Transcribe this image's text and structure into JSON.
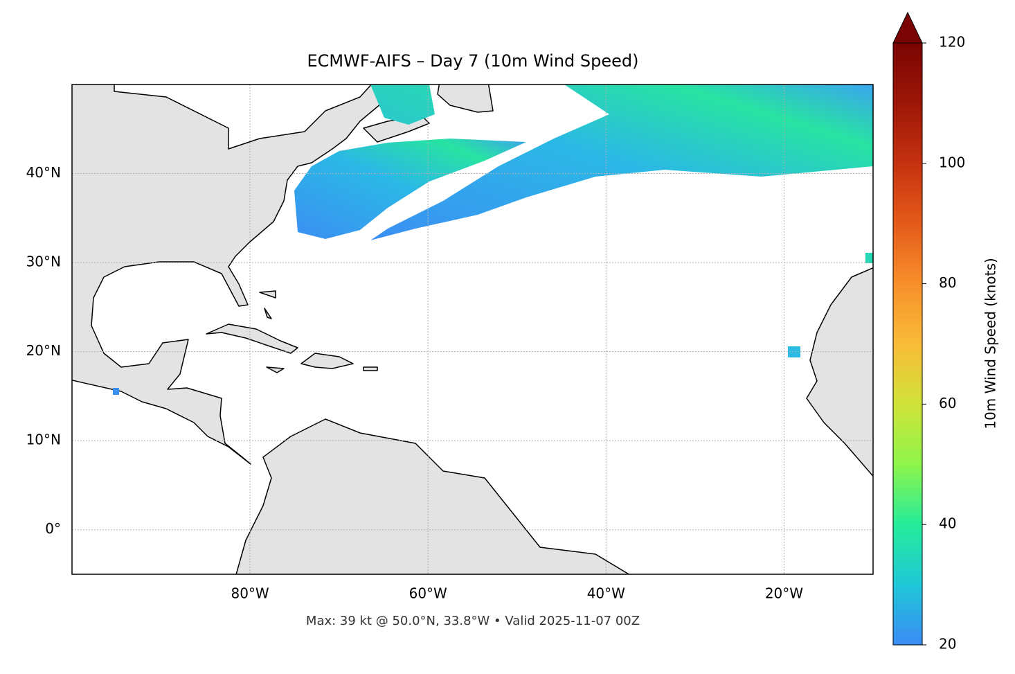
{
  "chart_data": {
    "type": "map",
    "title": "ECMWF-AIFS – Day 7 (10m Wind Speed)",
    "footer": "Max: 39 kt @ 50.0°N, 33.8°W • Valid 2025-11-07 00Z",
    "xlim": [
      -100,
      -10
    ],
    "ylim": [
      -5,
      50
    ],
    "xticks": [
      {
        "value": -80,
        "label": "80°W"
      },
      {
        "value": -60,
        "label": "60°W"
      },
      {
        "value": -40,
        "label": "40°W"
      },
      {
        "value": -20,
        "label": "20°W"
      }
    ],
    "yticks": [
      {
        "value": 0,
        "label": "0°"
      },
      {
        "value": 10,
        "label": "10°N"
      },
      {
        "value": 20,
        "label": "20°N"
      },
      {
        "value": 30,
        "label": "30°N"
      },
      {
        "value": 40,
        "label": "40°N"
      }
    ],
    "grid": true,
    "colorbar": {
      "label": "10m Wind Speed (knots)",
      "lim": [
        20,
        120
      ],
      "ticks": [
        20,
        40,
        60,
        80,
        100,
        120
      ]
    }
  }
}
